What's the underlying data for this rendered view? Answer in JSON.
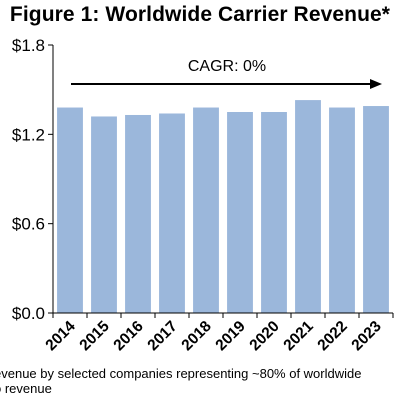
{
  "chart_data": {
    "type": "bar",
    "title": "Figure 1: Worldwide Carrier Revenue*",
    "categories": [
      "2014",
      "2015",
      "2016",
      "2017",
      "2018",
      "2019",
      "2020",
      "2021",
      "2022",
      "2023"
    ],
    "values": [
      1.38,
      1.32,
      1.33,
      1.34,
      1.38,
      1.35,
      1.35,
      1.43,
      1.38,
      1.39
    ],
    "ylim": [
      0,
      1.8
    ],
    "yticks": [
      "$0.0",
      "$0.6",
      "$1.2",
      "$1.8"
    ],
    "ytick_values": [
      0,
      0.6,
      1.2,
      1.8
    ],
    "bar_color": "#9bb7db",
    "grid": false,
    "annotation": "CAGR: 0%",
    "footnote_lines": [
      "evenue by selected companies representing ~80% of worldwide",
      "o revenue"
    ]
  }
}
